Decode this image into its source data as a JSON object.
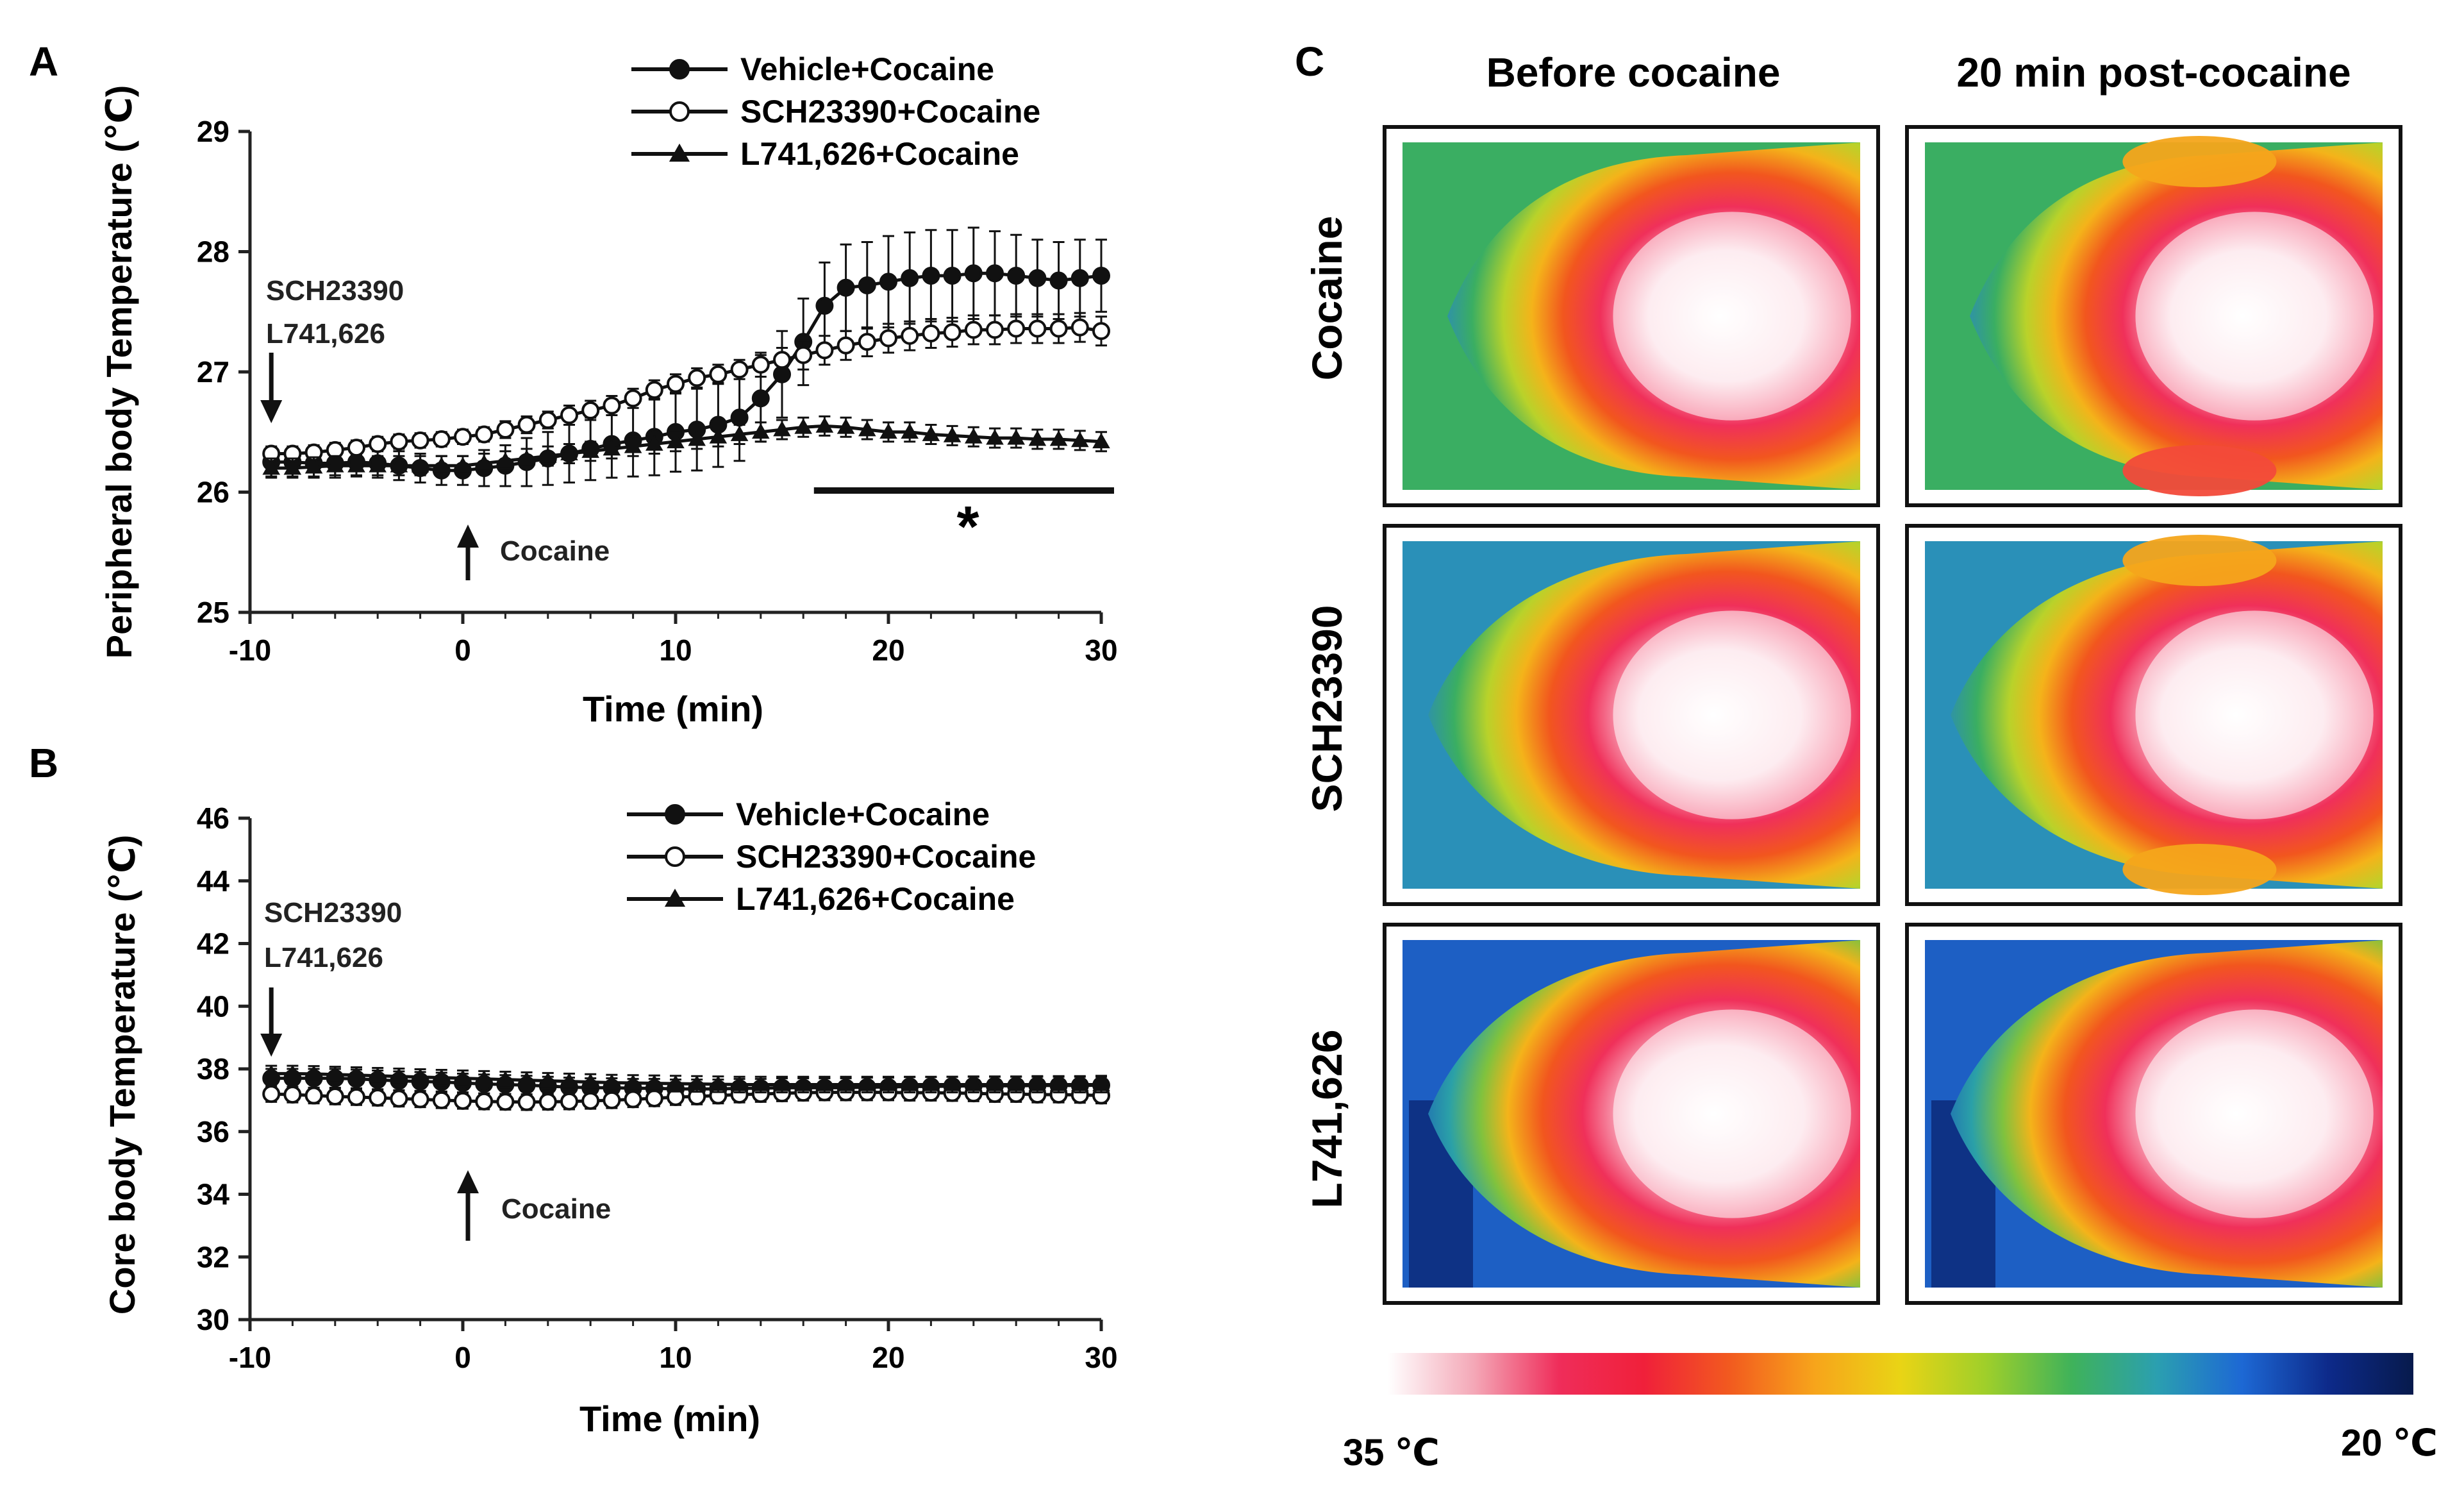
{
  "chart_data": [
    {
      "panel": "A",
      "type": "line",
      "ylabel": "Peripheral body Temperature (℃)",
      "xlabel": "Time (min)",
      "xlim": [
        -10,
        30
      ],
      "ylim": [
        25,
        29
      ],
      "xticks": [
        "-10",
        "0",
        "10",
        "20",
        "30"
      ],
      "yticks": [
        "25",
        "26",
        "27",
        "28",
        "29"
      ],
      "x": [
        -9,
        -8,
        -7,
        -6,
        -5,
        -4,
        -3,
        -2,
        -1,
        0,
        1,
        2,
        3,
        4,
        5,
        6,
        7,
        8,
        9,
        10,
        11,
        12,
        13,
        14,
        15,
        16,
        17,
        18,
        19,
        20,
        21,
        22,
        23,
        24,
        25,
        26,
        27,
        28,
        29,
        30
      ],
      "series": [
        {
          "name": "Vehicle+Cocaine",
          "marker": "filled-circle",
          "values": [
            26.25,
            26.25,
            26.24,
            26.24,
            26.25,
            26.24,
            26.22,
            26.2,
            26.18,
            26.18,
            26.2,
            26.22,
            26.25,
            26.28,
            26.32,
            26.36,
            26.4,
            26.43,
            26.46,
            26.5,
            26.52,
            26.56,
            26.62,
            26.78,
            26.98,
            27.25,
            27.55,
            27.7,
            27.72,
            27.75,
            27.78,
            27.8,
            27.8,
            27.82,
            27.82,
            27.8,
            27.78,
            27.76,
            27.78,
            27.8
          ],
          "errors": [
            0.12,
            0.12,
            0.12,
            0.12,
            0.12,
            0.12,
            0.12,
            0.12,
            0.12,
            0.12,
            0.15,
            0.17,
            0.2,
            0.22,
            0.24,
            0.26,
            0.28,
            0.3,
            0.32,
            0.33,
            0.34,
            0.35,
            0.36,
            0.36,
            0.36,
            0.36,
            0.36,
            0.36,
            0.36,
            0.38,
            0.38,
            0.38,
            0.38,
            0.38,
            0.35,
            0.34,
            0.32,
            0.32,
            0.32,
            0.3
          ]
        },
        {
          "name": "SCH23390+Cocaine",
          "marker": "open-circle",
          "values": [
            26.32,
            26.32,
            26.33,
            26.35,
            26.37,
            26.4,
            26.42,
            26.43,
            26.44,
            26.46,
            26.48,
            26.52,
            26.56,
            26.6,
            26.64,
            26.68,
            26.72,
            26.78,
            26.85,
            26.9,
            26.95,
            26.98,
            27.02,
            27.06,
            27.1,
            27.14,
            27.18,
            27.22,
            27.25,
            27.28,
            27.3,
            27.32,
            27.33,
            27.35,
            27.35,
            27.36,
            27.36,
            27.36,
            27.37,
            27.34
          ],
          "errors": [
            0.06,
            0.06,
            0.06,
            0.06,
            0.06,
            0.06,
            0.06,
            0.06,
            0.06,
            0.06,
            0.06,
            0.07,
            0.07,
            0.07,
            0.08,
            0.08,
            0.08,
            0.08,
            0.08,
            0.08,
            0.08,
            0.08,
            0.08,
            0.1,
            0.1,
            0.12,
            0.12,
            0.12,
            0.12,
            0.12,
            0.12,
            0.12,
            0.12,
            0.12,
            0.12,
            0.12,
            0.12,
            0.12,
            0.12,
            0.12
          ]
        },
        {
          "name": "L741,626+Cocaine",
          "marker": "filled-triangle",
          "values": [
            26.2,
            26.2,
            26.21,
            26.22,
            26.22,
            26.22,
            26.22,
            26.22,
            26.22,
            26.22,
            26.24,
            26.26,
            26.28,
            26.3,
            26.32,
            26.34,
            26.36,
            26.38,
            26.4,
            26.42,
            26.44,
            26.46,
            26.48,
            26.5,
            26.52,
            26.54,
            26.55,
            26.54,
            26.52,
            26.5,
            26.5,
            26.48,
            26.47,
            26.46,
            26.45,
            26.45,
            26.44,
            26.44,
            26.43,
            26.42
          ],
          "errors": [
            0.08,
            0.08,
            0.08,
            0.08,
            0.08,
            0.08,
            0.08,
            0.08,
            0.08,
            0.08,
            0.08,
            0.08,
            0.08,
            0.08,
            0.08,
            0.08,
            0.08,
            0.08,
            0.08,
            0.08,
            0.08,
            0.08,
            0.08,
            0.08,
            0.08,
            0.08,
            0.08,
            0.08,
            0.08,
            0.08,
            0.08,
            0.08,
            0.08,
            0.08,
            0.08,
            0.08,
            0.08,
            0.08,
            0.08,
            0.08
          ]
        }
      ],
      "annotations": {
        "pretreatment_line1": "SCH23390",
        "pretreatment_line2": "L741,626",
        "pretreatment_time": -9,
        "cocaine_label": "Cocaine",
        "cocaine_time": 0,
        "significance_marker": "*",
        "significance_range": [
          16.5,
          30
        ]
      }
    },
    {
      "panel": "B",
      "type": "line",
      "ylabel": "Core body Temperature (℃)",
      "xlabel": "Time (min)",
      "xlim": [
        -10,
        30
      ],
      "ylim": [
        30,
        46
      ],
      "xticks": [
        "-10",
        "0",
        "10",
        "20",
        "30"
      ],
      "yticks": [
        "30",
        "32",
        "34",
        "36",
        "38",
        "40",
        "42",
        "44",
        "46"
      ],
      "x": [
        -9,
        -8,
        -7,
        -6,
        -5,
        -4,
        -3,
        -2,
        -1,
        0,
        1,
        2,
        3,
        4,
        5,
        6,
        7,
        8,
        9,
        10,
        11,
        12,
        13,
        14,
        15,
        16,
        17,
        18,
        19,
        20,
        21,
        22,
        23,
        24,
        25,
        26,
        27,
        28,
        29,
        30
      ],
      "series": [
        {
          "name": "Vehicle+Cocaine",
          "marker": "filled-circle",
          "values": [
            37.7,
            37.7,
            37.7,
            37.7,
            37.68,
            37.65,
            37.62,
            37.6,
            37.58,
            37.55,
            37.52,
            37.5,
            37.48,
            37.45,
            37.42,
            37.4,
            37.4,
            37.38,
            37.38,
            37.36,
            37.36,
            37.36,
            37.38,
            37.38,
            37.4,
            37.4,
            37.4,
            37.4,
            37.42,
            37.42,
            37.44,
            37.44,
            37.45,
            37.46,
            37.46,
            37.46,
            37.47,
            37.47,
            37.47,
            37.48
          ],
          "errors": [
            0.3,
            0.3,
            0.3,
            0.3,
            0.3,
            0.3,
            0.3,
            0.3,
            0.3,
            0.3,
            0.3,
            0.3,
            0.3,
            0.3,
            0.3,
            0.3,
            0.3,
            0.3,
            0.3,
            0.3,
            0.3,
            0.3,
            0.3,
            0.3,
            0.3,
            0.3,
            0.3,
            0.3,
            0.3,
            0.3,
            0.3,
            0.3,
            0.3,
            0.3,
            0.3,
            0.3,
            0.3,
            0.3,
            0.3,
            0.3
          ]
        },
        {
          "name": "SCH23390+Cocaine",
          "marker": "open-circle",
          "values": [
            37.2,
            37.18,
            37.15,
            37.12,
            37.1,
            37.08,
            37.05,
            37.03,
            37.0,
            36.98,
            36.96,
            36.95,
            36.94,
            36.95,
            36.96,
            36.98,
            37.0,
            37.03,
            37.06,
            37.1,
            37.12,
            37.15,
            37.18,
            37.2,
            37.22,
            37.24,
            37.25,
            37.25,
            37.25,
            37.25,
            37.24,
            37.24,
            37.23,
            37.22,
            37.2,
            37.2,
            37.18,
            37.18,
            37.17,
            37.15
          ],
          "errors": [
            0.25,
            0.25,
            0.25,
            0.25,
            0.25,
            0.25,
            0.25,
            0.25,
            0.25,
            0.25,
            0.25,
            0.25,
            0.25,
            0.25,
            0.25,
            0.25,
            0.25,
            0.25,
            0.25,
            0.25,
            0.25,
            0.25,
            0.25,
            0.25,
            0.25,
            0.25,
            0.25,
            0.25,
            0.25,
            0.25,
            0.25,
            0.25,
            0.25,
            0.25,
            0.25,
            0.25,
            0.25,
            0.25,
            0.25,
            0.25
          ]
        },
        {
          "name": "L741,626+Cocaine",
          "marker": "filled-triangle",
          "values": [
            37.85,
            37.85,
            37.84,
            37.82,
            37.8,
            37.78,
            37.76,
            37.74,
            37.72,
            37.7,
            37.68,
            37.66,
            37.64,
            37.62,
            37.6,
            37.58,
            37.56,
            37.55,
            37.54,
            37.53,
            37.52,
            37.51,
            37.5,
            37.5,
            37.5,
            37.5,
            37.5,
            37.5,
            37.5,
            37.5,
            37.5,
            37.5,
            37.5,
            37.5,
            37.5,
            37.5,
            37.5,
            37.5,
            37.5,
            37.5
          ],
          "errors": [
            0.25,
            0.25,
            0.25,
            0.25,
            0.25,
            0.25,
            0.25,
            0.25,
            0.25,
            0.25,
            0.25,
            0.25,
            0.25,
            0.25,
            0.25,
            0.25,
            0.25,
            0.25,
            0.25,
            0.25,
            0.25,
            0.25,
            0.25,
            0.25,
            0.25,
            0.25,
            0.25,
            0.25,
            0.25,
            0.25,
            0.25,
            0.25,
            0.25,
            0.25,
            0.25,
            0.25,
            0.25,
            0.25,
            0.25,
            0.25
          ]
        }
      ],
      "annotations": {
        "pretreatment_line1": "SCH23390",
        "pretreatment_line2": "L741,626",
        "pretreatment_time": -9,
        "cocaine_label": "Cocaine",
        "cocaine_time": 0
      }
    }
  ],
  "panels": {
    "a_letter": "A",
    "b_letter": "B",
    "c_letter": "C"
  },
  "thermal": {
    "column_headers": [
      "Before cocaine",
      "20 min post-cocaine"
    ],
    "row_labels": [
      "Cocaine",
      "SCH23390",
      "L741,626"
    ],
    "scale_min_label": "35 ℃",
    "scale_max_label": "20 ℃",
    "scale_colors": [
      "#ffffff",
      "#f4a9b8",
      "#ef2d5a",
      "#f0203a",
      "#f25a1f",
      "#f7a51b",
      "#e9d415",
      "#9fcf2a",
      "#3fb25a",
      "#2b9fb0",
      "#1d68d4",
      "#0d2a8a",
      "#071a4c"
    ]
  },
  "series_colors": {
    "line": "#111111",
    "open_fill": "#ffffff"
  }
}
